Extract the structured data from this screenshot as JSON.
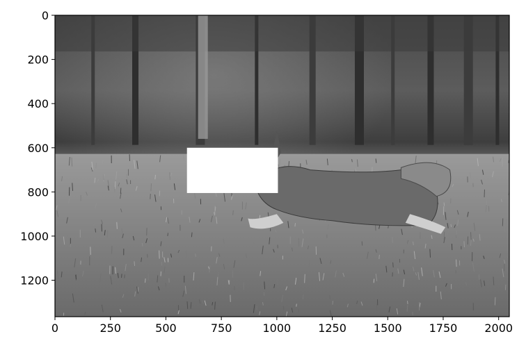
{
  "figure": {
    "image_description_icon": "grayscale-photo-dog-running-on-grass-icon",
    "x_axis": {
      "ticks": [
        {
          "value": 0,
          "label": "0"
        },
        {
          "value": 250,
          "label": "250"
        },
        {
          "value": 500,
          "label": "500"
        },
        {
          "value": 750,
          "label": "750"
        },
        {
          "value": 1000,
          "label": "1000"
        },
        {
          "value": 1250,
          "label": "1250"
        },
        {
          "value": 1500,
          "label": "1500"
        },
        {
          "value": 1750,
          "label": "1750"
        },
        {
          "value": 2000,
          "label": "2000"
        }
      ],
      "range": [
        0,
        2048
      ]
    },
    "y_axis": {
      "ticks": [
        {
          "value": 0,
          "label": "0"
        },
        {
          "value": 200,
          "label": "200"
        },
        {
          "value": 400,
          "label": "400"
        },
        {
          "value": 600,
          "label": "600"
        },
        {
          "value": 800,
          "label": "800"
        },
        {
          "value": 1000,
          "label": "1000"
        },
        {
          "value": 1200,
          "label": "1200"
        }
      ],
      "range": [
        0,
        1365
      ]
    },
    "masked_region": {
      "x0": 595,
      "y0": 600,
      "x1": 1005,
      "y1": 805,
      "color": "#ffffff"
    },
    "colors": {
      "sky": "#5a5a5a",
      "trees": "#3a3a3a",
      "grass": "#808080",
      "dog": "#6e6e6e"
    }
  }
}
